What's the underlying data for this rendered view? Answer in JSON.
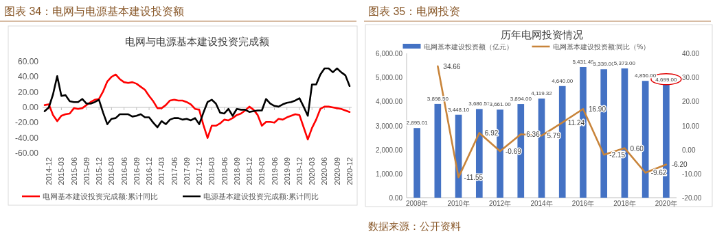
{
  "chart_data": [
    {
      "type": "line",
      "title": "图表 34：电网与电源基本建设投资额",
      "subtitle": "电网与电源基本建设投资完成额",
      "categories": [
        null,
        "2014-12",
        null,
        null,
        "2015-03",
        null,
        null,
        "2015-06",
        null,
        null,
        "2015-09",
        null,
        null,
        "2015-12",
        null,
        null,
        "2016-03",
        null,
        null,
        "2016-06",
        null,
        null,
        "2016-09",
        null,
        null,
        "2016-12",
        null,
        null,
        "2017-03",
        null,
        null,
        "2017-06",
        null,
        null,
        "2017-09",
        null,
        null,
        "2017-12",
        null,
        null,
        "2018-03",
        null,
        null,
        "2018-06",
        null,
        null,
        "2018-09",
        null,
        null,
        "2018-12",
        null,
        null,
        "2019-03",
        null,
        null,
        "2019-06",
        null,
        null,
        "2019-09",
        null,
        null,
        "2019-12",
        null,
        null,
        "2020-03",
        null,
        null,
        "2020-06",
        null,
        null,
        "2020-09",
        null,
        null,
        "2020-12"
      ],
      "series": [
        {
          "name": "电网基本建设投资完成额:累计同比",
          "color": "#ff0000",
          "values": [
            3,
            4,
            -10,
            -18,
            -11,
            -9,
            -8,
            -1,
            -2,
            -1,
            3,
            7,
            10,
            11,
            21,
            34,
            40,
            43,
            37,
            33,
            32,
            33,
            31,
            27,
            23,
            15,
            8,
            -1,
            -1,
            3,
            9,
            10,
            9,
            9,
            7,
            4,
            -2,
            -3,
            -23,
            -40,
            -24,
            -24,
            -21,
            -16,
            -17,
            -14,
            -10,
            -8,
            -4,
            1,
            -3,
            -10,
            -24,
            -19,
            -19,
            -20,
            -15,
            -16,
            -13,
            -11,
            -9,
            -10,
            -26,
            -42,
            -27,
            -16,
            -2,
            1,
            1,
            0,
            -1,
            -2,
            -4,
            -6
          ]
        },
        {
          "name": "电源基本建设投资完成额:累计同比",
          "color": "#000000",
          "values": [
            -5,
            0,
            17,
            41,
            15,
            16,
            8,
            7,
            7,
            11,
            5,
            5,
            7,
            10,
            -7,
            -22,
            -15,
            -14,
            -9,
            -9,
            -9,
            -12,
            -11,
            -9,
            -13,
            -13,
            -20,
            -26,
            -18,
            -22,
            -16,
            -14,
            -14,
            -16,
            -15,
            -17,
            -14,
            -22,
            -7,
            7,
            10,
            5,
            -7,
            -8,
            -2,
            -11,
            -2,
            -3,
            -3,
            -6,
            -5,
            -4,
            -4,
            11,
            5,
            2,
            1,
            4,
            6,
            7,
            9,
            12,
            1,
            -11,
            30,
            30,
            43,
            51,
            51,
            46,
            51,
            46,
            42,
            28
          ]
        }
      ],
      "ylim": [
        -60,
        60
      ],
      "yticks": [
        {
          "value": -60,
          "label": "-60.00"
        },
        {
          "value": -40,
          "label": "-40.00"
        },
        {
          "value": -20,
          "label": "-20.00"
        },
        {
          "value": 0,
          "label": "0.00"
        },
        {
          "value": 20,
          "label": "20.00"
        },
        {
          "value": 40,
          "label": "40.00"
        },
        {
          "value": 60,
          "label": "60.00"
        }
      ],
      "legend": "bottom",
      "marker": "none",
      "line_style": "solid"
    },
    {
      "type": "bar",
      "title": "图表 35：电网投资",
      "subtitle": "历年电网投资情况",
      "categories": [
        "2008年",
        null,
        "2010年",
        null,
        "2012年",
        null,
        "2014年",
        null,
        "2016年",
        null,
        "2018年",
        null,
        "2020年"
      ],
      "series": [
        {
          "name": "电网基本建设投资额（亿元）",
          "color": "#4472c4",
          "values": [
            2895.01,
            3898.5,
            3448.1,
            3686.57,
            3661,
            3894,
            4119.32,
            4640,
            5431.49,
            5339,
            5373,
            4856,
            4699
          ],
          "value_labels": [
            "2,895.01",
            "3,898.50",
            "3,448.10",
            "3,686.57",
            "3,661.00",
            "3,894.00",
            "4,119.32",
            "4,640.00",
            "5,431.49",
            "5,339.00",
            "5,373.00",
            "4,856.00",
            "4,699.00"
          ]
        },
        {
          "name": "电网基本建设投资额:同比（%）",
          "type": "line",
          "axis": "y2",
          "color": "#c8843a",
          "values": [
            null,
            34.66,
            -11.55,
            6.92,
            -0.69,
            6.36,
            5.79,
            11.24,
            16.9,
            -2.15,
            0.6,
            -9.62,
            -6.2
          ],
          "value_labels": [
            null,
            "34.66",
            "-11.55",
            "6.92",
            "-0.69",
            "6.36",
            "5.79",
            "11.24",
            "16.90",
            "-2.15",
            "0.60",
            "-9.62",
            "-6.20"
          ]
        }
      ],
      "ylim": [
        0,
        6000
      ],
      "yticks": [
        {
          "value": 0,
          "label": "0.00"
        },
        {
          "value": 1000,
          "label": "1,000.00"
        },
        {
          "value": 2000,
          "label": "2,000.00"
        },
        {
          "value": 3000,
          "label": "3,000.00"
        },
        {
          "value": 4000,
          "label": "4,000.00"
        },
        {
          "value": 5000,
          "label": "5,000.00"
        },
        {
          "value": 6000,
          "label": "6,000.00"
        }
      ],
      "y2lim": [
        -20,
        40
      ],
      "y2ticks": [
        {
          "value": -20,
          "label": "-20.00"
        },
        {
          "value": -10,
          "label": "-10.00"
        },
        {
          "value": 0,
          "label": "0.00"
        },
        {
          "value": 10,
          "label": "10.00"
        },
        {
          "value": 20,
          "label": "20.00"
        },
        {
          "value": 30,
          "label": "30.00"
        },
        {
          "value": 40,
          "label": "40.00"
        }
      ],
      "legend": "top",
      "marker": "none",
      "line_style": "solid",
      "annotations": [
        "数据来源：公开资料"
      ]
    }
  ]
}
